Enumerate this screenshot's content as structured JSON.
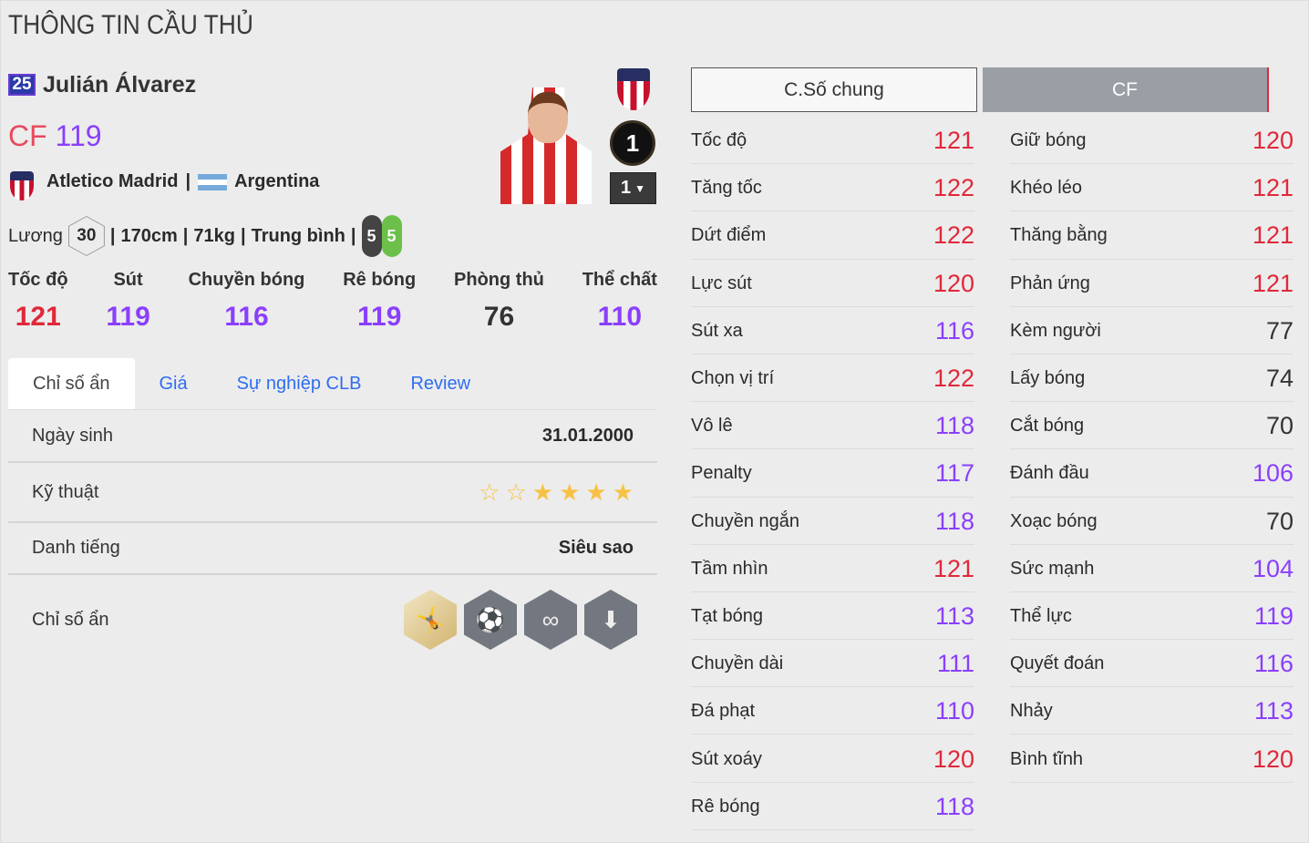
{
  "page_title": "THÔNG TIN CẦU THỦ",
  "player": {
    "season_badge": "25",
    "name": "Julián Álvarez",
    "position": "CF",
    "ovr": "119",
    "club": "Atletico Madrid",
    "nation": "Argentina",
    "salary_label": "Lương",
    "salary": "30",
    "height": "170cm",
    "weight": "71kg",
    "body_type": "Trung bình",
    "weak_foot_left": "5",
    "weak_foot_right": "5",
    "level": "1",
    "level_select": "1"
  },
  "summary": [
    {
      "label": "Tốc độ",
      "value": "121",
      "tone": "red"
    },
    {
      "label": "Sút",
      "value": "119",
      "tone": "pur"
    },
    {
      "label": "Chuyền bóng",
      "value": "116",
      "tone": "pur"
    },
    {
      "label": "Rê bóng",
      "value": "119",
      "tone": "pur"
    },
    {
      "label": "Phòng thủ",
      "value": "76",
      "tone": "drk"
    },
    {
      "label": "Thể chất",
      "value": "110",
      "tone": "pur"
    }
  ],
  "tabs": [
    "Chỉ số ẩn",
    "Giá",
    "Sự nghiệp CLB",
    "Review"
  ],
  "details": {
    "birth_label": "Ngày sinh",
    "birth": "31.01.2000",
    "skill_label": "Kỹ thuật",
    "skill_stars": 4,
    "skill_stars_max": 6,
    "fame_label": "Danh tiếng",
    "fame": "Siêu sao",
    "traits_label": "Chỉ số ẩn",
    "traits": [
      "bicycle-kick-icon",
      "long-shot-icon",
      "dribble-path-icon",
      "header-icon"
    ]
  },
  "colors": {
    "red": "#e0283a",
    "purple": "#8a3ffc",
    "link": "#2f6df0"
  },
  "attr_tabs": [
    "C.Số chung",
    "CF"
  ],
  "attrs_left": [
    [
      "Tốc độ",
      "121"
    ],
    [
      "Tăng tốc",
      "122"
    ],
    [
      "Dứt điểm",
      "122"
    ],
    [
      "Lực sút",
      "120"
    ],
    [
      "Sút xa",
      "116"
    ],
    [
      "Chọn vị trí",
      "122"
    ],
    [
      "Vô lê",
      "118"
    ],
    [
      "Penalty",
      "117"
    ],
    [
      "Chuyền ngắn",
      "118"
    ],
    [
      "Tầm nhìn",
      "121"
    ],
    [
      "Tạt bóng",
      "113"
    ],
    [
      "Chuyền dài",
      "111"
    ],
    [
      "Đá phạt",
      "110"
    ],
    [
      "Sút xoáy",
      "120"
    ],
    [
      "Rê bóng",
      "118"
    ]
  ],
  "attrs_right": [
    [
      "Giữ bóng",
      "120"
    ],
    [
      "Khéo léo",
      "121"
    ],
    [
      "Thăng bằng",
      "121"
    ],
    [
      "Phản ứng",
      "121"
    ],
    [
      "Kèm người",
      "77"
    ],
    [
      "Lấy bóng",
      "74"
    ],
    [
      "Cắt bóng",
      "70"
    ],
    [
      "Đánh đầu",
      "106"
    ],
    [
      "Xoạc bóng",
      "70"
    ],
    [
      "Sức mạnh",
      "104"
    ],
    [
      "Thể lực",
      "119"
    ],
    [
      "Quyết đoán",
      "116"
    ],
    [
      "Nhảy",
      "113"
    ],
    [
      "Bình tĩnh",
      "120"
    ]
  ]
}
